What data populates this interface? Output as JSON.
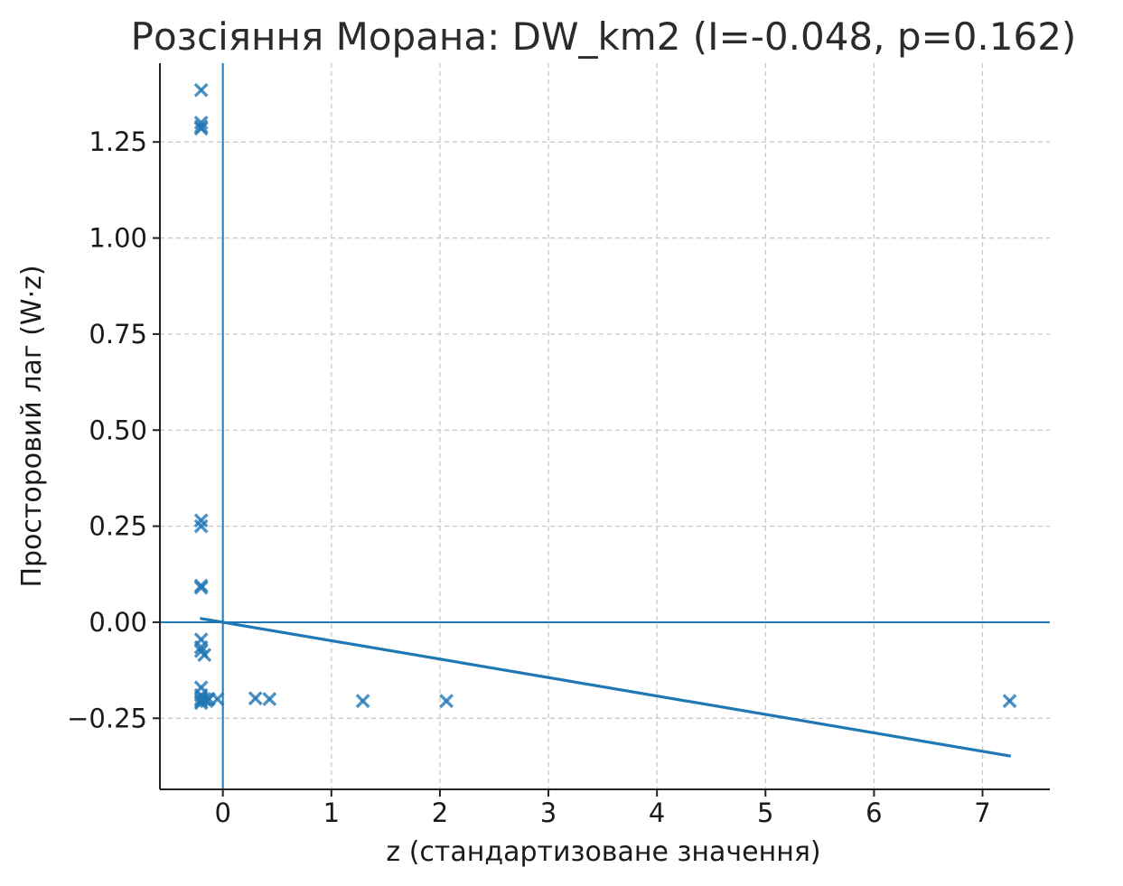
{
  "chart_data": {
    "type": "scatter",
    "title": "Розсіяння Морана: DW_km2 (I=-0.048, p=0.162)",
    "xlabel": "z (стандартизоване значення)",
    "ylabel": "Просторовий лаг (W·z)",
    "xlim": [
      -0.58,
      7.62
    ],
    "ylim": [
      -0.435,
      1.455
    ],
    "x_ticks": [
      0,
      1,
      2,
      3,
      4,
      5,
      6,
      7
    ],
    "x_tick_labels": [
      "0",
      "1",
      "2",
      "3",
      "4",
      "5",
      "6",
      "7"
    ],
    "y_ticks": [
      -0.25,
      0,
      0.25,
      0.5,
      0.75,
      1.0,
      1.25
    ],
    "y_tick_labels": [
      "−0.25",
      "0.00",
      "0.25",
      "0.50",
      "0.75",
      "1.00",
      "1.25"
    ],
    "grid": true,
    "marker": "x",
    "color": "#1f77b4",
    "reference_lines": {
      "x": 0,
      "y": 0
    },
    "fit_line": {
      "slope": -0.048,
      "intercept": 0,
      "x_range": [
        -0.21,
        7.26
      ]
    },
    "points": [
      {
        "x": -0.2,
        "y": 1.385
      },
      {
        "x": -0.2,
        "y": 1.3
      },
      {
        "x": -0.2,
        "y": 1.29
      },
      {
        "x": -0.2,
        "y": 1.285
      },
      {
        "x": -0.2,
        "y": 0.265
      },
      {
        "x": -0.2,
        "y": 0.25
      },
      {
        "x": -0.2,
        "y": 0.095
      },
      {
        "x": -0.2,
        "y": 0.09
      },
      {
        "x": -0.2,
        "y": -0.045
      },
      {
        "x": -0.2,
        "y": -0.065
      },
      {
        "x": -0.2,
        "y": -0.075
      },
      {
        "x": -0.17,
        "y": -0.085
      },
      {
        "x": -0.2,
        "y": -0.17
      },
      {
        "x": -0.2,
        "y": -0.19
      },
      {
        "x": -0.2,
        "y": -0.2
      },
      {
        "x": -0.2,
        "y": -0.205
      },
      {
        "x": -0.2,
        "y": -0.21
      },
      {
        "x": -0.17,
        "y": -0.2
      },
      {
        "x": -0.15,
        "y": -0.205
      },
      {
        "x": -0.13,
        "y": -0.2
      },
      {
        "x": -0.05,
        "y": -0.2
      },
      {
        "x": 0.3,
        "y": -0.198
      },
      {
        "x": 0.43,
        "y": -0.2
      },
      {
        "x": 1.29,
        "y": -0.205
      },
      {
        "x": 2.06,
        "y": -0.205
      },
      {
        "x": 7.25,
        "y": -0.205
      }
    ]
  }
}
